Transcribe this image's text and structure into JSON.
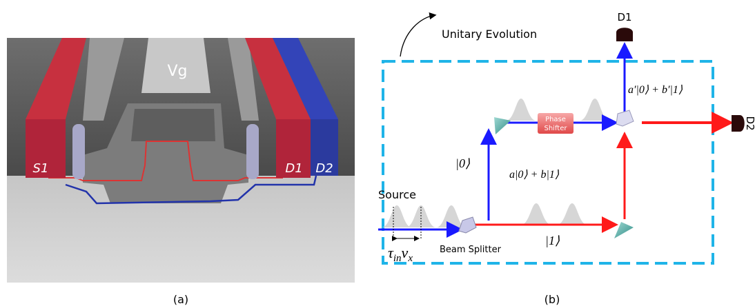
{
  "panel_a": {
    "gate_label": "Vg",
    "source_label": "S1",
    "drain1_label": "D1",
    "drain2_label": "D2",
    "caption": "(a)"
  },
  "panel_b": {
    "evolution_label": "Unitary Evolution",
    "detector1": "D1",
    "detector2": "D2",
    "output_state": "a′|0⟩ + b′|1⟩",
    "phase_shifter": [
      "Phase",
      "Shifter"
    ],
    "upper_path": "|0⟩",
    "superposition": "a|0⟩ + b|1⟩",
    "source": "Source",
    "beam_splitter": "Beam Splitter",
    "lower_path": "|1⟩",
    "spacing": [
      "τ",
      "in",
      "v",
      "x"
    ],
    "caption": "(b)"
  }
}
